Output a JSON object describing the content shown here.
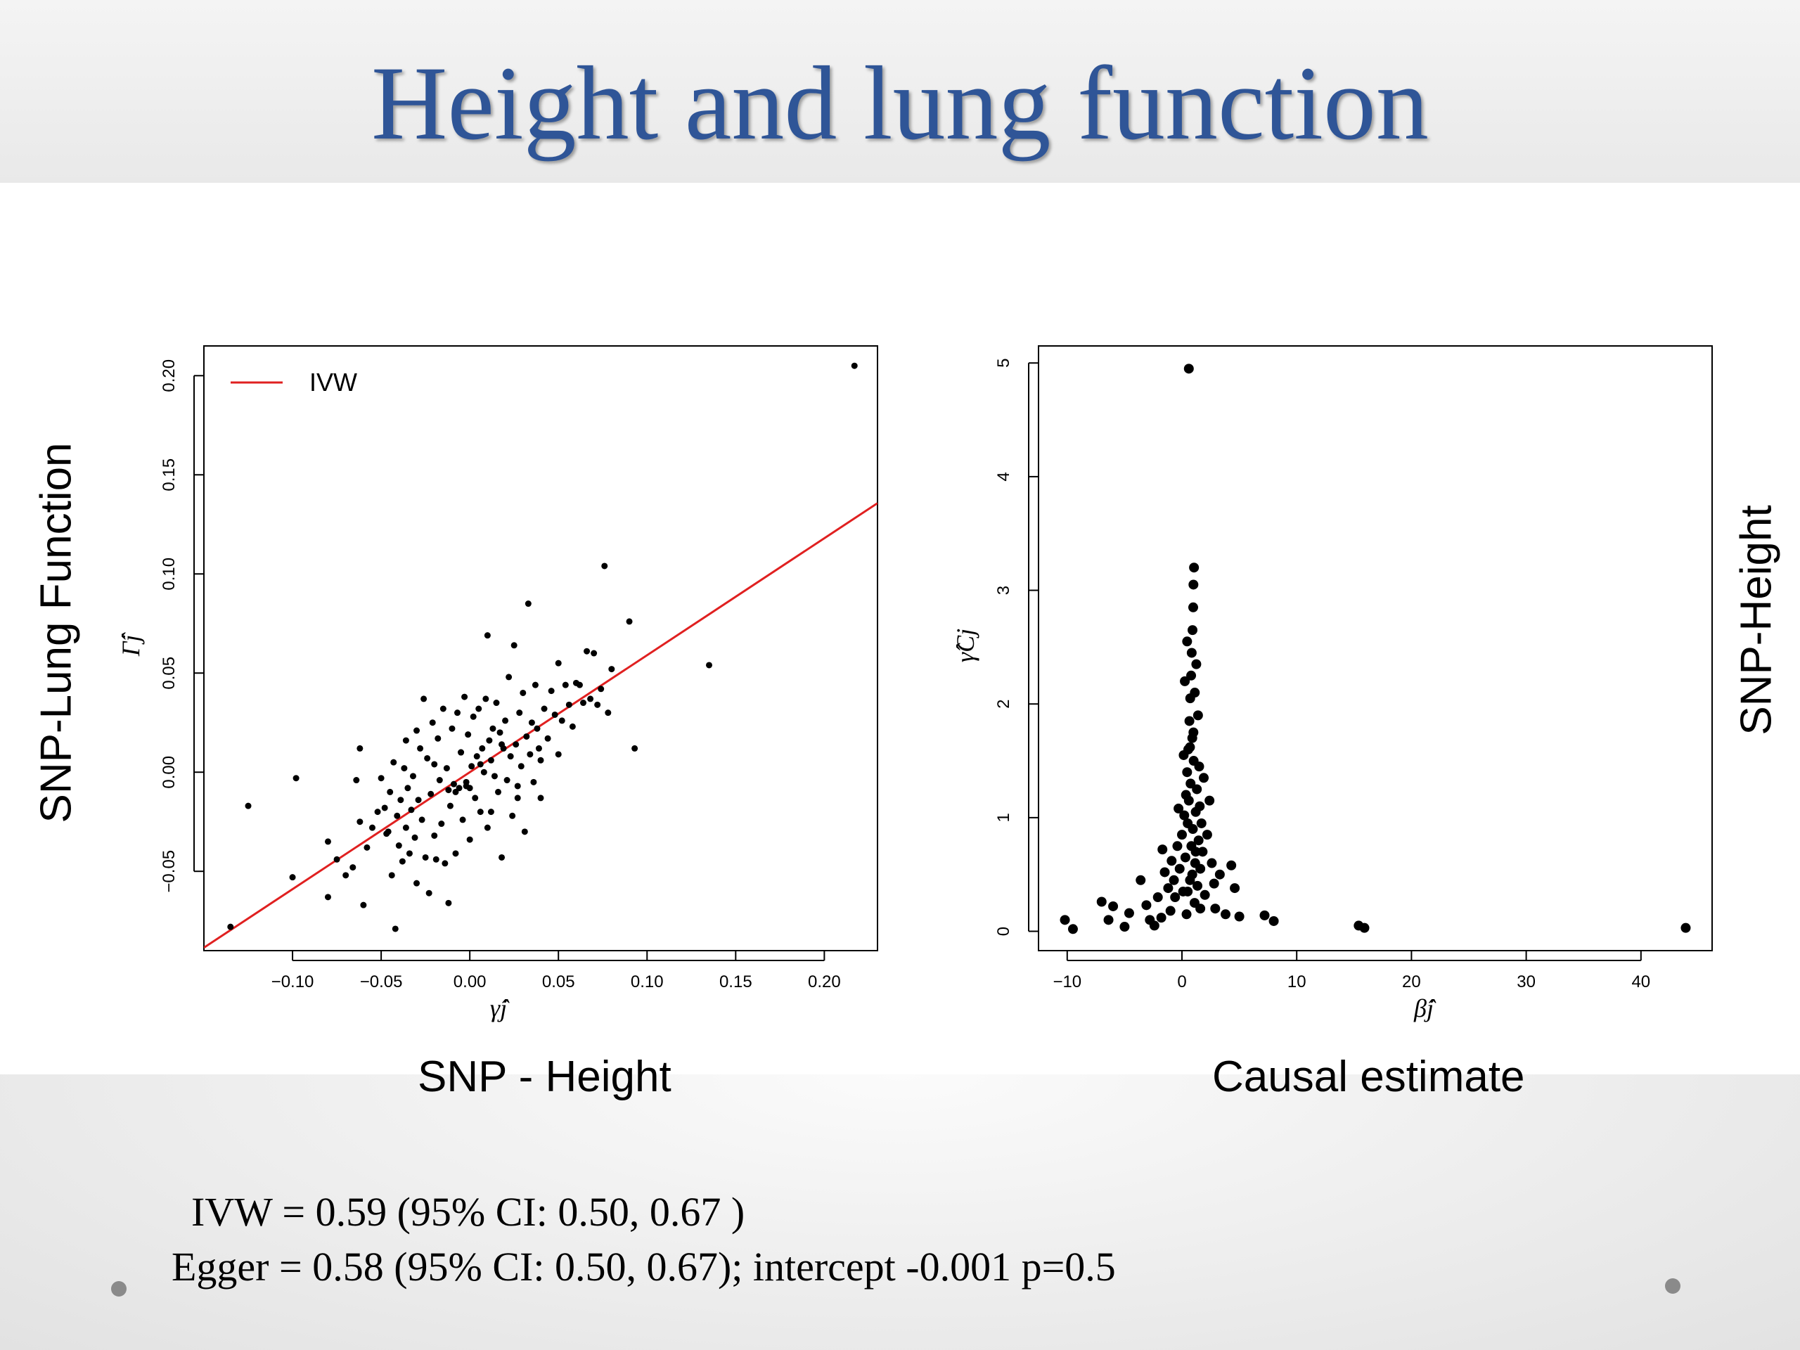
{
  "slide": {
    "title": "Height and lung function",
    "left_outer_ylabel": "SNP-Lung Function",
    "left_outer_xlabel": "SNP - Height",
    "right_outer_ylabel": "SNP-Height",
    "right_outer_xlabel": "Causal estimate",
    "ivw_text": "IVW = 0.59 (95% CI: 0.50, 0.67 )",
    "egger_text": "Egger = 0.58 (95% CI: 0.50, 0.67); intercept -0.001 p=0.5",
    "accent_color": "#2f5597"
  },
  "chart_data": [
    {
      "type": "scatter",
      "xlabel": "γ̂j",
      "ylabel": "Γ̂j",
      "xlim": [
        -0.15,
        0.23
      ],
      "ylim": [
        -0.09,
        0.215
      ],
      "xticks": [
        "−0.10",
        "−0.05",
        "0.00",
        "0.05",
        "0.10",
        "0.15",
        "0.20"
      ],
      "xtick_values": [
        -0.1,
        -0.05,
        0.0,
        0.05,
        0.1,
        0.15,
        0.2
      ],
      "yticks": [
        "−0.05",
        "0.00",
        "0.05",
        "0.10",
        "0.15",
        "0.20"
      ],
      "ytick_values": [
        -0.05,
        0.0,
        0.05,
        0.1,
        0.15,
        0.2
      ],
      "legend": {
        "position": "top-left",
        "entries": [
          "IVW"
        ]
      },
      "line": {
        "name": "IVW",
        "slope": 0.59,
        "intercept": 0.0,
        "color": "#e02020"
      },
      "series": [
        {
          "points": [
            [
              0.217,
              0.205
            ],
            [
              -0.135,
              -0.078
            ],
            [
              -0.125,
              -0.017
            ],
            [
              -0.1,
              -0.053
            ],
            [
              -0.098,
              -0.003
            ],
            [
              -0.08,
              -0.035
            ],
            [
              -0.08,
              -0.063
            ],
            [
              -0.075,
              -0.044
            ],
            [
              -0.07,
              -0.052
            ],
            [
              -0.066,
              -0.048
            ],
            [
              -0.064,
              -0.004
            ],
            [
              -0.062,
              0.012
            ],
            [
              -0.062,
              -0.025
            ],
            [
              -0.06,
              -0.067
            ],
            [
              -0.058,
              -0.038
            ],
            [
              -0.055,
              -0.028
            ],
            [
              -0.052,
              -0.02
            ],
            [
              -0.05,
              -0.003
            ],
            [
              -0.048,
              -0.018
            ],
            [
              -0.047,
              -0.031
            ],
            [
              -0.045,
              -0.01
            ],
            [
              -0.044,
              -0.052
            ],
            [
              -0.043,
              0.005
            ],
            [
              -0.042,
              -0.079
            ],
            [
              -0.041,
              -0.022
            ],
            [
              -0.04,
              -0.037
            ],
            [
              -0.039,
              -0.014
            ],
            [
              -0.038,
              -0.045
            ],
            [
              -0.037,
              0.002
            ],
            [
              -0.036,
              -0.028
            ],
            [
              -0.035,
              -0.008
            ],
            [
              -0.034,
              -0.041
            ],
            [
              -0.033,
              -0.019
            ],
            [
              -0.032,
              -0.002
            ],
            [
              -0.031,
              -0.033
            ],
            [
              -0.03,
              -0.056
            ],
            [
              -0.029,
              -0.014
            ],
            [
              -0.028,
              0.012
            ],
            [
              -0.027,
              -0.024
            ],
            [
              -0.026,
              0.037
            ],
            [
              -0.025,
              -0.043
            ],
            [
              -0.024,
              0.007
            ],
            [
              -0.023,
              -0.061
            ],
            [
              -0.022,
              -0.011
            ],
            [
              -0.021,
              0.025
            ],
            [
              -0.02,
              -0.032
            ],
            [
              -0.019,
              -0.044
            ],
            [
              -0.018,
              0.017
            ],
            [
              -0.017,
              -0.004
            ],
            [
              -0.016,
              -0.026
            ],
            [
              -0.015,
              0.032
            ],
            [
              -0.014,
              -0.046
            ],
            [
              -0.013,
              0.002
            ],
            [
              -0.012,
              -0.066
            ],
            [
              -0.011,
              -0.017
            ],
            [
              -0.01,
              0.022
            ],
            [
              -0.009,
              -0.006
            ],
            [
              -0.008,
              -0.041
            ],
            [
              -0.007,
              0.03
            ],
            [
              -0.006,
              -0.008
            ],
            [
              -0.005,
              0.01
            ],
            [
              -0.004,
              -0.024
            ],
            [
              -0.003,
              0.038
            ],
            [
              -0.002,
              -0.005
            ],
            [
              -0.001,
              0.019
            ],
            [
              0.0,
              -0.034
            ],
            [
              0.001,
              0.003
            ],
            [
              0.002,
              0.028
            ],
            [
              0.003,
              -0.013
            ],
            [
              0.004,
              0.008
            ],
            [
              0.005,
              0.032
            ],
            [
              0.006,
              -0.02
            ],
            [
              0.007,
              0.012
            ],
            [
              0.008,
              0.0
            ],
            [
              0.009,
              0.037
            ],
            [
              0.01,
              -0.028
            ],
            [
              0.011,
              0.016
            ],
            [
              0.012,
              0.006
            ],
            [
              0.013,
              0.022
            ],
            [
              0.014,
              -0.002
            ],
            [
              0.015,
              0.035
            ],
            [
              0.016,
              -0.01
            ],
            [
              0.017,
              0.02
            ],
            [
              0.018,
              -0.043
            ],
            [
              0.019,
              0.012
            ],
            [
              0.02,
              0.026
            ],
            [
              0.021,
              -0.004
            ],
            [
              0.022,
              0.048
            ],
            [
              0.023,
              0.008
            ],
            [
              0.024,
              -0.022
            ],
            [
              0.025,
              0.064
            ],
            [
              0.026,
              0.014
            ],
            [
              0.027,
              -0.013
            ],
            [
              0.028,
              0.03
            ],
            [
              0.029,
              0.003
            ],
            [
              0.03,
              0.04
            ],
            [
              0.031,
              -0.03
            ],
            [
              0.032,
              0.018
            ],
            [
              0.033,
              0.085
            ],
            [
              0.034,
              0.009
            ],
            [
              0.035,
              0.025
            ],
            [
              0.036,
              -0.005
            ],
            [
              0.037,
              0.044
            ],
            [
              0.038,
              0.022
            ],
            [
              0.039,
              0.012
            ],
            [
              0.04,
              -0.013
            ],
            [
              0.042,
              0.032
            ],
            [
              0.044,
              0.017
            ],
            [
              0.046,
              0.041
            ],
            [
              0.048,
              0.029
            ],
            [
              0.05,
              0.055
            ],
            [
              0.05,
              0.009
            ],
            [
              0.052,
              0.026
            ],
            [
              0.054,
              0.044
            ],
            [
              0.056,
              0.034
            ],
            [
              0.058,
              0.023
            ],
            [
              0.06,
              0.045
            ],
            [
              0.062,
              0.044
            ],
            [
              0.064,
              0.035
            ],
            [
              0.066,
              0.061
            ],
            [
              0.068,
              0.037
            ],
            [
              0.07,
              0.06
            ],
            [
              0.072,
              0.034
            ],
            [
              0.074,
              0.042
            ],
            [
              0.076,
              0.104
            ],
            [
              0.078,
              0.03
            ],
            [
              0.08,
              0.052
            ],
            [
              0.09,
              0.076
            ],
            [
              0.093,
              0.012
            ],
            [
              0.135,
              0.054
            ],
            [
              0.01,
              0.069
            ],
            [
              -0.005,
              0.01
            ],
            [
              -0.012,
              -0.009
            ],
            [
              -0.002,
              -0.007
            ],
            [
              0.0,
              -0.008
            ],
            [
              -0.008,
              -0.01
            ],
            [
              -0.02,
              0.004
            ],
            [
              0.018,
              0.014
            ],
            [
              0.006,
              0.004
            ],
            [
              -0.03,
              0.021
            ],
            [
              0.027,
              -0.007
            ],
            [
              0.04,
              0.006
            ],
            [
              -0.046,
              -0.03
            ],
            [
              -0.036,
              0.016
            ],
            [
              0.012,
              -0.02
            ]
          ]
        }
      ]
    },
    {
      "type": "scatter",
      "xlabel": "β̂j",
      "ylabel": "γ̂Cj",
      "xlim": [
        -12.5,
        46.2
      ],
      "ylim": [
        -0.17,
        5.15
      ],
      "xticks": [
        "−10",
        "0",
        "10",
        "20",
        "30",
        "40"
      ],
      "xtick_values": [
        -10,
        0,
        10,
        20,
        30,
        40
      ],
      "yticks": [
        "0",
        "1",
        "2",
        "3",
        "4",
        "5"
      ],
      "ytick_values": [
        0,
        1,
        2,
        3,
        4,
        5
      ],
      "series": [
        {
          "points": [
            [
              0.6,
              4.95
            ],
            [
              43.9,
              0.03
            ],
            [
              -10.2,
              0.1
            ],
            [
              -9.5,
              0.02
            ],
            [
              -7.0,
              0.26
            ],
            [
              -6.4,
              0.1
            ],
            [
              -6.0,
              0.22
            ],
            [
              -5.0,
              0.04
            ],
            [
              -4.6,
              0.16
            ],
            [
              -3.6,
              0.45
            ],
            [
              -3.1,
              0.23
            ],
            [
              -2.8,
              0.1
            ],
            [
              -2.4,
              0.05
            ],
            [
              -2.1,
              0.3
            ],
            [
              -1.8,
              0.12
            ],
            [
              -1.5,
              0.52
            ],
            [
              -1.2,
              0.38
            ],
            [
              -0.9,
              0.62
            ],
            [
              -0.7,
              0.45
            ],
            [
              -0.4,
              0.75
            ],
            [
              -0.2,
              0.55
            ],
            [
              0.0,
              0.85
            ],
            [
              0.1,
              0.35
            ],
            [
              0.2,
              1.02
            ],
            [
              0.3,
              0.65
            ],
            [
              0.35,
              1.2
            ],
            [
              0.4,
              0.15
            ],
            [
              0.45,
              1.4
            ],
            [
              0.5,
              0.95
            ],
            [
              0.55,
              1.6
            ],
            [
              0.6,
              1.15
            ],
            [
              0.65,
              1.85
            ],
            [
              0.7,
              0.45
            ],
            [
              0.72,
              2.05
            ],
            [
              0.75,
              1.3
            ],
            [
              0.8,
              2.25
            ],
            [
              0.82,
              0.75
            ],
            [
              0.85,
              2.45
            ],
            [
              0.9,
              1.7
            ],
            [
              0.92,
              2.65
            ],
            [
              0.95,
              0.9
            ],
            [
              0.98,
              2.85
            ],
            [
              1.0,
              3.05
            ],
            [
              1.02,
              1.5
            ],
            [
              1.05,
              3.2
            ],
            [
              1.1,
              0.25
            ],
            [
              1.12,
              2.1
            ],
            [
              1.15,
              0.6
            ],
            [
              1.2,
              1.05
            ],
            [
              1.25,
              2.35
            ],
            [
              1.3,
              1.25
            ],
            [
              1.35,
              0.4
            ],
            [
              1.4,
              1.9
            ],
            [
              1.45,
              0.8
            ],
            [
              1.5,
              1.45
            ],
            [
              1.55,
              1.1
            ],
            [
              1.6,
              0.55
            ],
            [
              1.7,
              0.95
            ],
            [
              1.8,
              0.7
            ],
            [
              1.9,
              1.35
            ],
            [
              2.0,
              0.32
            ],
            [
              2.2,
              0.85
            ],
            [
              2.4,
              1.15
            ],
            [
              2.6,
              0.6
            ],
            [
              2.9,
              0.2
            ],
            [
              3.3,
              0.5
            ],
            [
              3.8,
              0.15
            ],
            [
              4.3,
              0.58
            ],
            [
              4.6,
              0.38
            ],
            [
              5.0,
              0.13
            ],
            [
              7.2,
              0.14
            ],
            [
              8.0,
              0.09
            ],
            [
              15.4,
              0.05
            ],
            [
              15.9,
              0.03
            ],
            [
              -0.6,
              0.3
            ],
            [
              -1.0,
              0.18
            ],
            [
              0.15,
              1.55
            ],
            [
              0.25,
              2.2
            ],
            [
              0.45,
              2.55
            ],
            [
              1.6,
              0.2
            ],
            [
              2.8,
              0.42
            ],
            [
              1.0,
              1.75
            ],
            [
              0.7,
              1.62
            ],
            [
              -0.3,
              1.08
            ],
            [
              0.9,
              0.5
            ],
            [
              1.2,
              0.7
            ],
            [
              0.5,
              0.35
            ],
            [
              -1.7,
              0.72
            ]
          ]
        }
      ]
    }
  ]
}
